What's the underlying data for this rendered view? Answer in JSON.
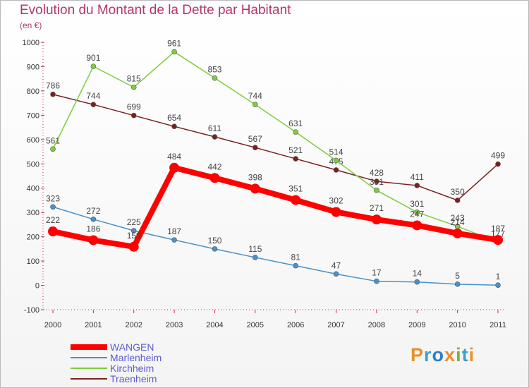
{
  "title": "Evolution du Montant de la Dette par Habitant",
  "subtitle": "(en €)",
  "logo": {
    "text": "Proxiti",
    "letter_colors": [
      "#e8902a",
      "#3aa0d8",
      "#2e7fc6",
      "#e8902a",
      "#6fb83a",
      "#3aa0d8",
      "#e8902a"
    ]
  },
  "chart_data": {
    "type": "line",
    "x": [
      "2000",
      "2001",
      "2002",
      "2003",
      "2004",
      "2005",
      "2006",
      "2007",
      "2008",
      "2009",
      "2010",
      "2011"
    ],
    "ylim": [
      -100,
      1000
    ],
    "yticks": [
      "-100",
      "0",
      "100",
      "200",
      "300",
      "400",
      "500",
      "600",
      "700",
      "800",
      "900",
      "1000"
    ],
    "grid": false,
    "legend_position": "bottom-left",
    "series": [
      {
        "name": "WANGEN",
        "color": "#ff0000",
        "values": [
          222,
          186,
          159,
          484,
          442,
          398,
          351,
          302,
          271,
          247,
          214,
          187
        ]
      },
      {
        "name": "Marlenheim",
        "color": "#4a90c9",
        "values": [
          323,
          272,
          225,
          187,
          150,
          115,
          81,
          47,
          17,
          14,
          5,
          1
        ]
      },
      {
        "name": "Kirchheim",
        "color": "#7fcc3f",
        "values": [
          561,
          901,
          815,
          961,
          853,
          744,
          631,
          514,
          391,
          301,
          243,
          177
        ]
      },
      {
        "name": "Traenheim",
        "color": "#7a1f1f",
        "values": [
          786,
          744,
          699,
          654,
          611,
          567,
          521,
          475,
          428,
          411,
          350,
          499
        ]
      }
    ]
  }
}
